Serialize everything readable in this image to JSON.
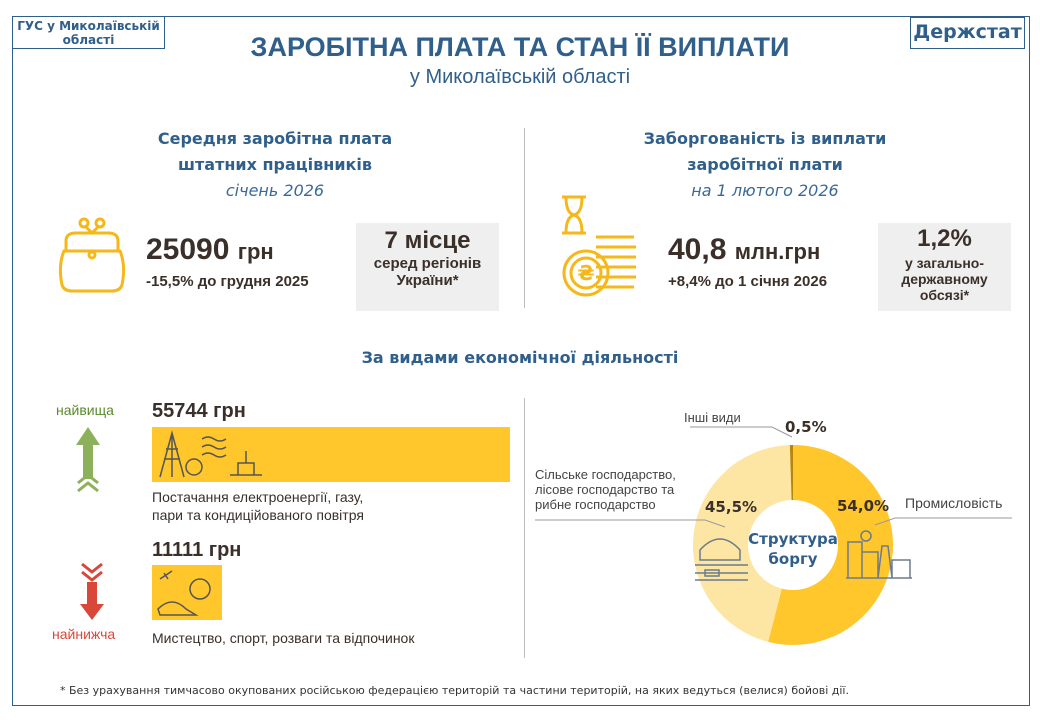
{
  "header": {
    "org": "ГУС у Миколаївській області",
    "brand": "Держстат",
    "title": "ЗАРОБІТНА ПЛАТА ТА СТАН ЇЇ ВИПЛАТИ",
    "subtitle": "у Миколаївській області"
  },
  "wage": {
    "heading1": "Середня заробітна плата",
    "heading2": "штатних працівників",
    "period": "січень 2026",
    "value": "25090",
    "unit": "грн",
    "change": "-15,5%  до грудня 2025",
    "rank": "7 місце",
    "rank_text1": "серед регіонів",
    "rank_text2": "України*"
  },
  "debt": {
    "heading1": "Заборгованість  із виплати",
    "heading2": "заробітної плати",
    "period": "на 1 лютого 2026",
    "value": "40,8",
    "unit": "млн.грн",
    "change": "+8,4%  до 1 січня 2026",
    "share": "1,2%",
    "share_text1": "у загально-",
    "share_text2": "державному",
    "share_text3": "обсязі*"
  },
  "activities": {
    "heading": "За видами економічної діяльності",
    "highest_label": "найвища",
    "highest_value": "55744 грн",
    "highest_name1": "Постачання електроенергії, газу,",
    "highest_name2": "пари та кондиційованого  повітря",
    "lowest_label": "найнижча",
    "lowest_value": "11111 грн",
    "lowest_name": "Мистецтво, спорт, розваги та відпочинок"
  },
  "chart_data": {
    "type": "pie",
    "title": "Структура боргу",
    "center_label1": "Структура",
    "center_label2": "боргу",
    "labels": [
      "Промисловість",
      "Сільське господарство, лісове господарство та рибне господарство",
      "Інші види"
    ],
    "label_lines": [
      [
        "Промисловість"
      ],
      [
        "Сільське господарство,",
        "лісове господарство та",
        "рибне господарство"
      ],
      [
        "Інші види"
      ]
    ],
    "values": [
      54.0,
      45.5,
      0.5
    ],
    "value_labels": [
      "54,0%",
      "45,5%",
      "0,5%"
    ],
    "colors": [
      "#ffc72c",
      "#fde6a3",
      "#b8860b"
    ]
  },
  "footnote": "* Без урахування тимчасово окупованих російською федерацією територій та частини територій, на яких ведуться (велися) бойові дії."
}
